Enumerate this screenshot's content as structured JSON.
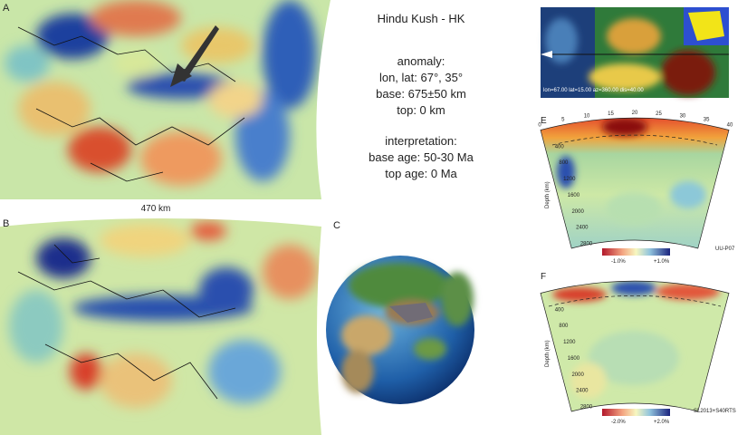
{
  "panels": {
    "a": {
      "label": "A",
      "scale": "470 km"
    },
    "b": {
      "label": "B"
    },
    "c": {
      "label": "C"
    },
    "e": {
      "label": "E",
      "model": "UU-P07",
      "distance_ticks": [
        0,
        5,
        10,
        15,
        20,
        25,
        30,
        35,
        40
      ],
      "depth_ticks": [
        400,
        800,
        1200,
        1600,
        2000,
        2400,
        2800
      ],
      "depth_axis": "Depth (km)",
      "colorbar": [
        "-1.0%",
        "+1.0%"
      ]
    },
    "f": {
      "label": "F",
      "model": "SL2013+S40RTS",
      "depth_ticks": [
        400,
        800,
        1200,
        1600,
        2000,
        2400,
        2800
      ],
      "depth_axis": "Depth (km)",
      "colorbar": [
        "-2.0%",
        "+2.0%"
      ]
    }
  },
  "info": {
    "title": "Hindu Kush - HK",
    "anomaly": "anomaly:",
    "lonlat": "lon, lat: 67°, 35°",
    "base": "base: 675±50 km",
    "top": "top: 0 km",
    "interpretation": "interpretation:",
    "base_age": "base age: 50-30 Ma",
    "top_age": "top age: 0 Ma"
  },
  "inset": {
    "caption": "lon=67.00 lat=15.00 az=360.00 dis=40.00"
  }
}
